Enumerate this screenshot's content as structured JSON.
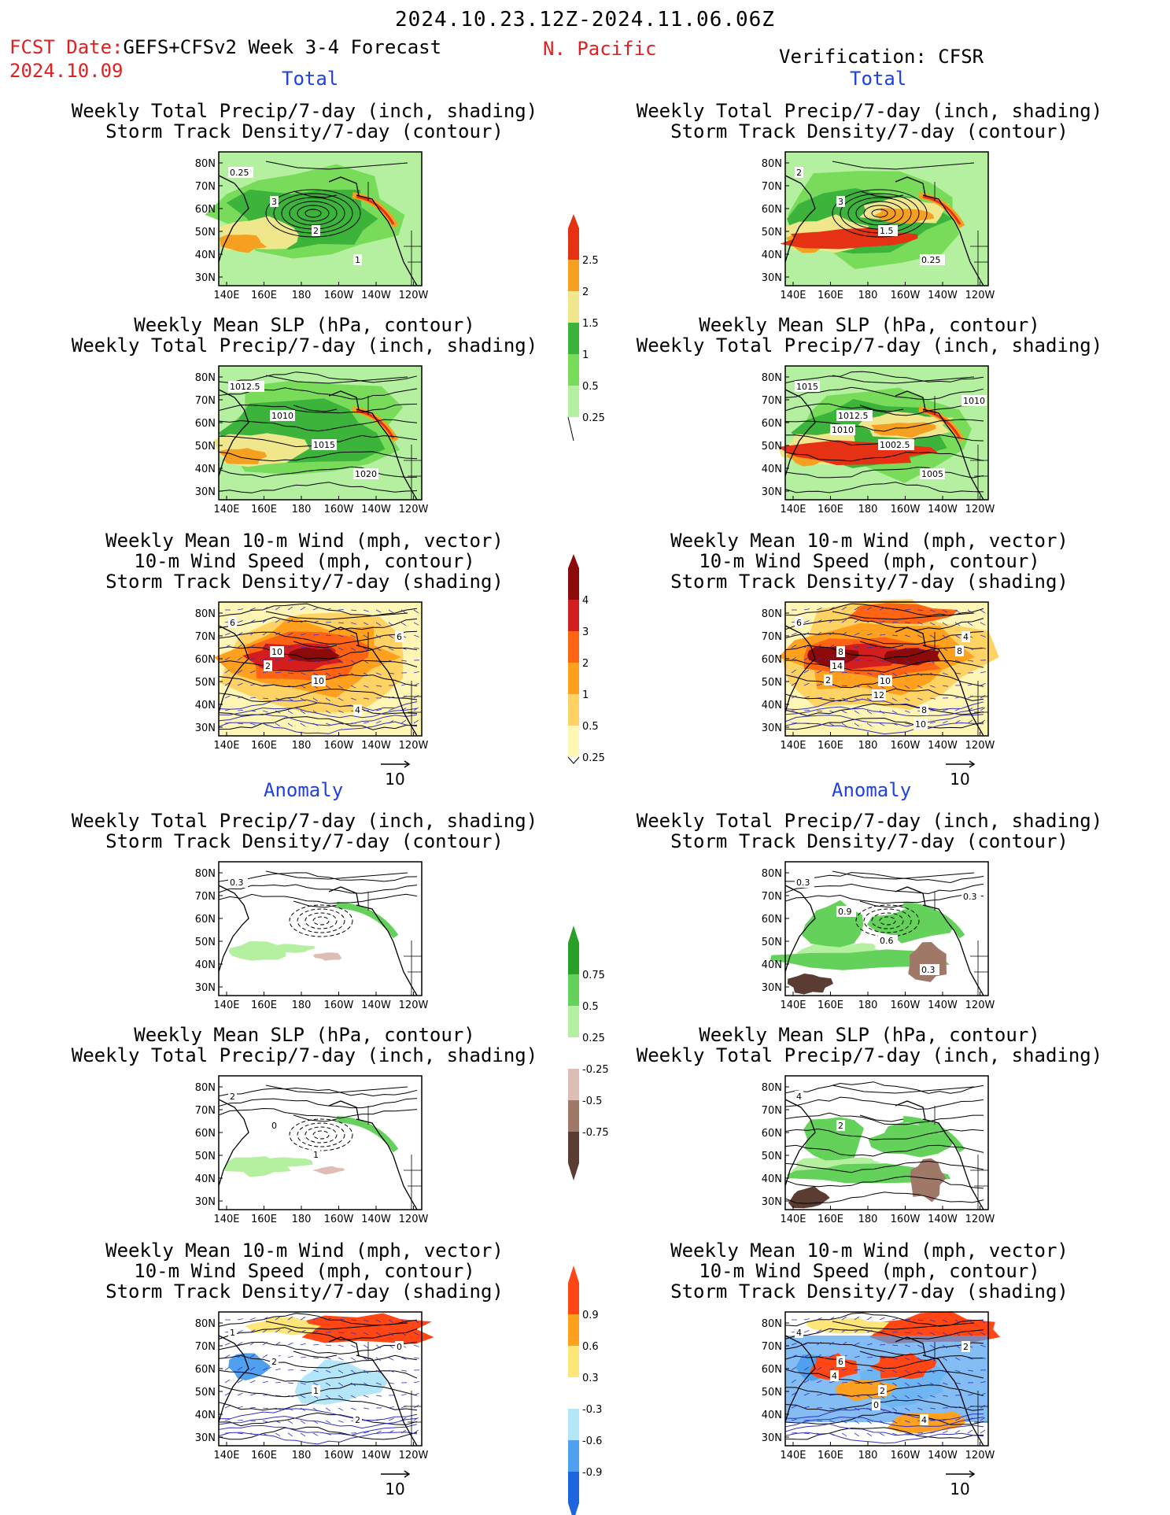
{
  "header": {
    "date_range": "2024.10.23.12Z-2024.11.06.06Z",
    "fcst_label": "FCST Date:",
    "fcst_model": "GEFS+CFSv2 Week 3-4 Forecast",
    "fcst_date": "2024.10.09",
    "region": "N. Pacific",
    "verification": "Verification: CFSR"
  },
  "sections": {
    "total_left": "Total",
    "total_right": "Total",
    "anomaly_left": "Anomaly",
    "anomaly_right": "Anomaly"
  },
  "panel_titles": {
    "precip_track": "Weekly Total Precip/7-day (inch, shading)\nStorm Track Density/7-day (contour)",
    "slp_precip": "Weekly Mean SLP (hPa, contour)\nWeekly Total Precip/7-day (inch, shading)",
    "wind_track": "Weekly Mean 10-m Wind (mph, vector)\n10-m Wind Speed (mph, contour)\nStorm Track Density/7-day (shading)"
  },
  "axes": {
    "lat_labels": [
      "80N",
      "70N",
      "60N",
      "50N",
      "40N",
      "30N"
    ],
    "lon_labels": [
      "140E",
      "160E",
      "180",
      "160W",
      "140W",
      "120W"
    ]
  },
  "vector_ref": "10",
  "colors": {
    "precip": [
      "#b4f0a0",
      "#78dc5a",
      "#3cb43c",
      "#f0e68c",
      "#f5a020",
      "#e63214"
    ],
    "track": [
      "#fff5b4",
      "#ffd264",
      "#ffa01e",
      "#ff6414",
      "#d21e1e",
      "#8c0a0a"
    ],
    "precip_anom": [
      "#5a3c32",
      "#a07868",
      "#dcbeb4",
      "#ffffff",
      "#b4f0a0",
      "#64d25a",
      "#28a028"
    ],
    "track_anom": [
      "#1e64dc",
      "#50a0f0",
      "#b4e6fa",
      "#ffffff",
      "#ffe678",
      "#ffa01e",
      "#ff4614"
    ]
  },
  "chart_data": [
    {
      "type": "heatmap",
      "id": "colorbar-precip-total",
      "values": [
        "0.25",
        "0.5",
        "1",
        "1.5",
        "2",
        "2.5"
      ]
    },
    {
      "type": "heatmap",
      "id": "colorbar-track-total",
      "values": [
        "0.25",
        "0.5",
        "1",
        "2",
        "3",
        "4"
      ]
    },
    {
      "type": "heatmap",
      "id": "colorbar-precip-anomaly",
      "values": [
        "-0.75",
        "-0.5",
        "-0.25",
        "0.25",
        "0.5",
        "0.75"
      ]
    },
    {
      "type": "heatmap",
      "id": "colorbar-track-anomaly",
      "values": [
        "-0.9",
        "-0.6",
        "-0.3",
        "0.3",
        "0.6",
        "0.9"
      ]
    }
  ],
  "map_labels": {
    "p1": [
      "0.25",
      "3",
      "2",
      "1"
    ],
    "p2": [
      "2",
      "3",
      "1.5",
      "0.25"
    ],
    "p3": [
      "1012.5",
      "1010",
      "1015",
      "1020"
    ],
    "p4": [
      "1015",
      "1012.5",
      "1002.5",
      "1005",
      "1010",
      "1010"
    ],
    "p5": [
      "6",
      "10",
      "10",
      "4",
      "6",
      "2"
    ],
    "p6": [
      "6",
      "8",
      "10",
      "8",
      "4",
      "14",
      "12",
      "10",
      "8",
      "2"
    ],
    "p7": [
      "0.3"
    ],
    "p8": [
      "0.3",
      "0.9",
      "0.6",
      "0.3",
      "0.3"
    ],
    "p9": [
      "2",
      "0",
      "1"
    ],
    "p10": [
      "4",
      "2"
    ],
    "p11": [
      "1",
      "2",
      "1",
      "2",
      "0"
    ],
    "p12": [
      "4",
      "6",
      "2",
      "4",
      "2",
      "4",
      "0"
    ]
  }
}
